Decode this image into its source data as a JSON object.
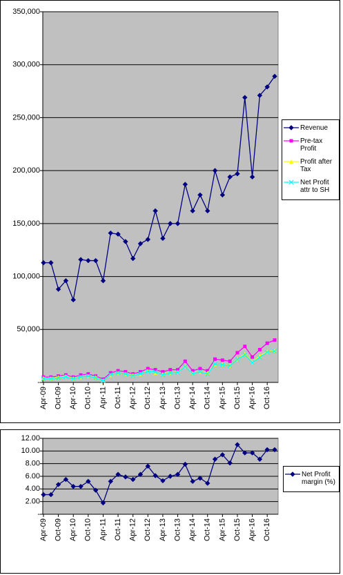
{
  "chart_data": [
    {
      "type": "line",
      "categories": [
        "Apr-09",
        null,
        "Oct-09",
        null,
        "Apr-10",
        null,
        "Oct-10",
        null,
        "Apr-11",
        null,
        "Oct-11",
        null,
        "Apr-12",
        null,
        "Oct-12",
        null,
        "Apr-13",
        null,
        "Oct-13",
        null,
        "Apr-14",
        null,
        "Oct-14",
        null,
        "Apr-15",
        null,
        "Oct-15",
        null,
        "Apr-16",
        null,
        "Oct-16",
        null
      ],
      "series": [
        {
          "name": "Revenue",
          "color": "#000080",
          "marker": "diamond",
          "values": [
            113000,
            113000,
            88000,
            96000,
            78000,
            116000,
            115000,
            115000,
            96000,
            141000,
            140000,
            133000,
            117000,
            131000,
            135000,
            162000,
            136000,
            150000,
            150000,
            187000,
            162000,
            177000,
            162000,
            200000,
            177000,
            194000,
            197000,
            269000,
            194000,
            271000,
            279000,
            289000
          ]
        },
        {
          "name": "Pre-tax Profit",
          "color": "#ff00ff",
          "marker": "square",
          "values": [
            5000,
            5000,
            6000,
            7000,
            5000,
            7000,
            8000,
            6000,
            3000,
            9000,
            11000,
            10000,
            8000,
            10000,
            13000,
            12000,
            10000,
            12000,
            12000,
            20000,
            11000,
            13000,
            11000,
            22000,
            21000,
            20000,
            28000,
            34000,
            24000,
            31000,
            37000,
            40000
          ]
        },
        {
          "name": "Profit after Tax",
          "color": "#ffff00",
          "marker": "triangle",
          "values": [
            4000,
            4000,
            5000,
            6000,
            4000,
            5000,
            6000,
            5000,
            2000,
            7000,
            9000,
            8000,
            7000,
            8000,
            11000,
            9000,
            8000,
            9000,
            10000,
            15000,
            9000,
            10000,
            9000,
            17000,
            17000,
            16000,
            22000,
            27000,
            19000,
            25000,
            29000,
            30000
          ]
        },
        {
          "name": "Net Profit attr to SH",
          "color": "#00ffff",
          "marker": "x",
          "values": [
            3500,
            3500,
            4200,
            5300,
            3400,
            5100,
            6000,
            4400,
            1700,
            7300,
            8800,
            7900,
            6400,
            8300,
            10300,
            9900,
            7200,
            9000,
            9500,
            14800,
            8400,
            10100,
            7900,
            17400,
            16600,
            15700,
            21700,
            26100,
            18800,
            23600,
            28500,
            29500
          ]
        }
      ],
      "ylim": [
        0,
        350000
      ],
      "yticks": [
        {
          "value": 0,
          "label": "-"
        },
        {
          "value": 50000,
          "label": "50,000"
        },
        {
          "value": 100000,
          "label": "100,000"
        },
        {
          "value": 150000,
          "label": "150,000"
        },
        {
          "value": 200000,
          "label": "200,000"
        },
        {
          "value": 250000,
          "label": "250,000"
        },
        {
          "value": 300000,
          "label": "300,000"
        },
        {
          "value": 350000,
          "label": "350,000"
        }
      ],
      "grid": true,
      "legend": "right"
    },
    {
      "type": "line",
      "categories": [
        "Apr-09",
        null,
        "Oct-09",
        null,
        "Apr-10",
        null,
        "Oct-10",
        null,
        "Apr-11",
        null,
        "Oct-11",
        null,
        "Apr-12",
        null,
        "Oct-12",
        null,
        "Apr-13",
        null,
        "Oct-13",
        null,
        "Apr-14",
        null,
        "Oct-14",
        null,
        "Apr-15",
        null,
        "Oct-15",
        null,
        "Apr-16",
        null,
        "Oct-16",
        null
      ],
      "series": [
        {
          "name": "Net Profit margin (%)",
          "color": "#000080",
          "marker": "diamond",
          "values": [
            3.1,
            3.1,
            4.7,
            5.5,
            4.4,
            4.4,
            5.2,
            3.8,
            1.8,
            5.2,
            6.3,
            5.9,
            5.5,
            6.3,
            7.6,
            6.1,
            5.3,
            6.0,
            6.3,
            7.9,
            5.2,
            5.7,
            4.9,
            8.7,
            9.4,
            8.1,
            11.0,
            9.7,
            9.7,
            8.7,
            10.2,
            10.2
          ]
        }
      ],
      "ylim": [
        0,
        12
      ],
      "yticks": [
        {
          "value": 0,
          "label": "-"
        },
        {
          "value": 2,
          "label": "2.00"
        },
        {
          "value": 4,
          "label": "4.00"
        },
        {
          "value": 6,
          "label": "6.00"
        },
        {
          "value": 8,
          "label": "8.00"
        },
        {
          "value": 10,
          "label": "10.00"
        },
        {
          "value": 12,
          "label": "12.00"
        }
      ],
      "grid": true,
      "legend": "right"
    }
  ]
}
